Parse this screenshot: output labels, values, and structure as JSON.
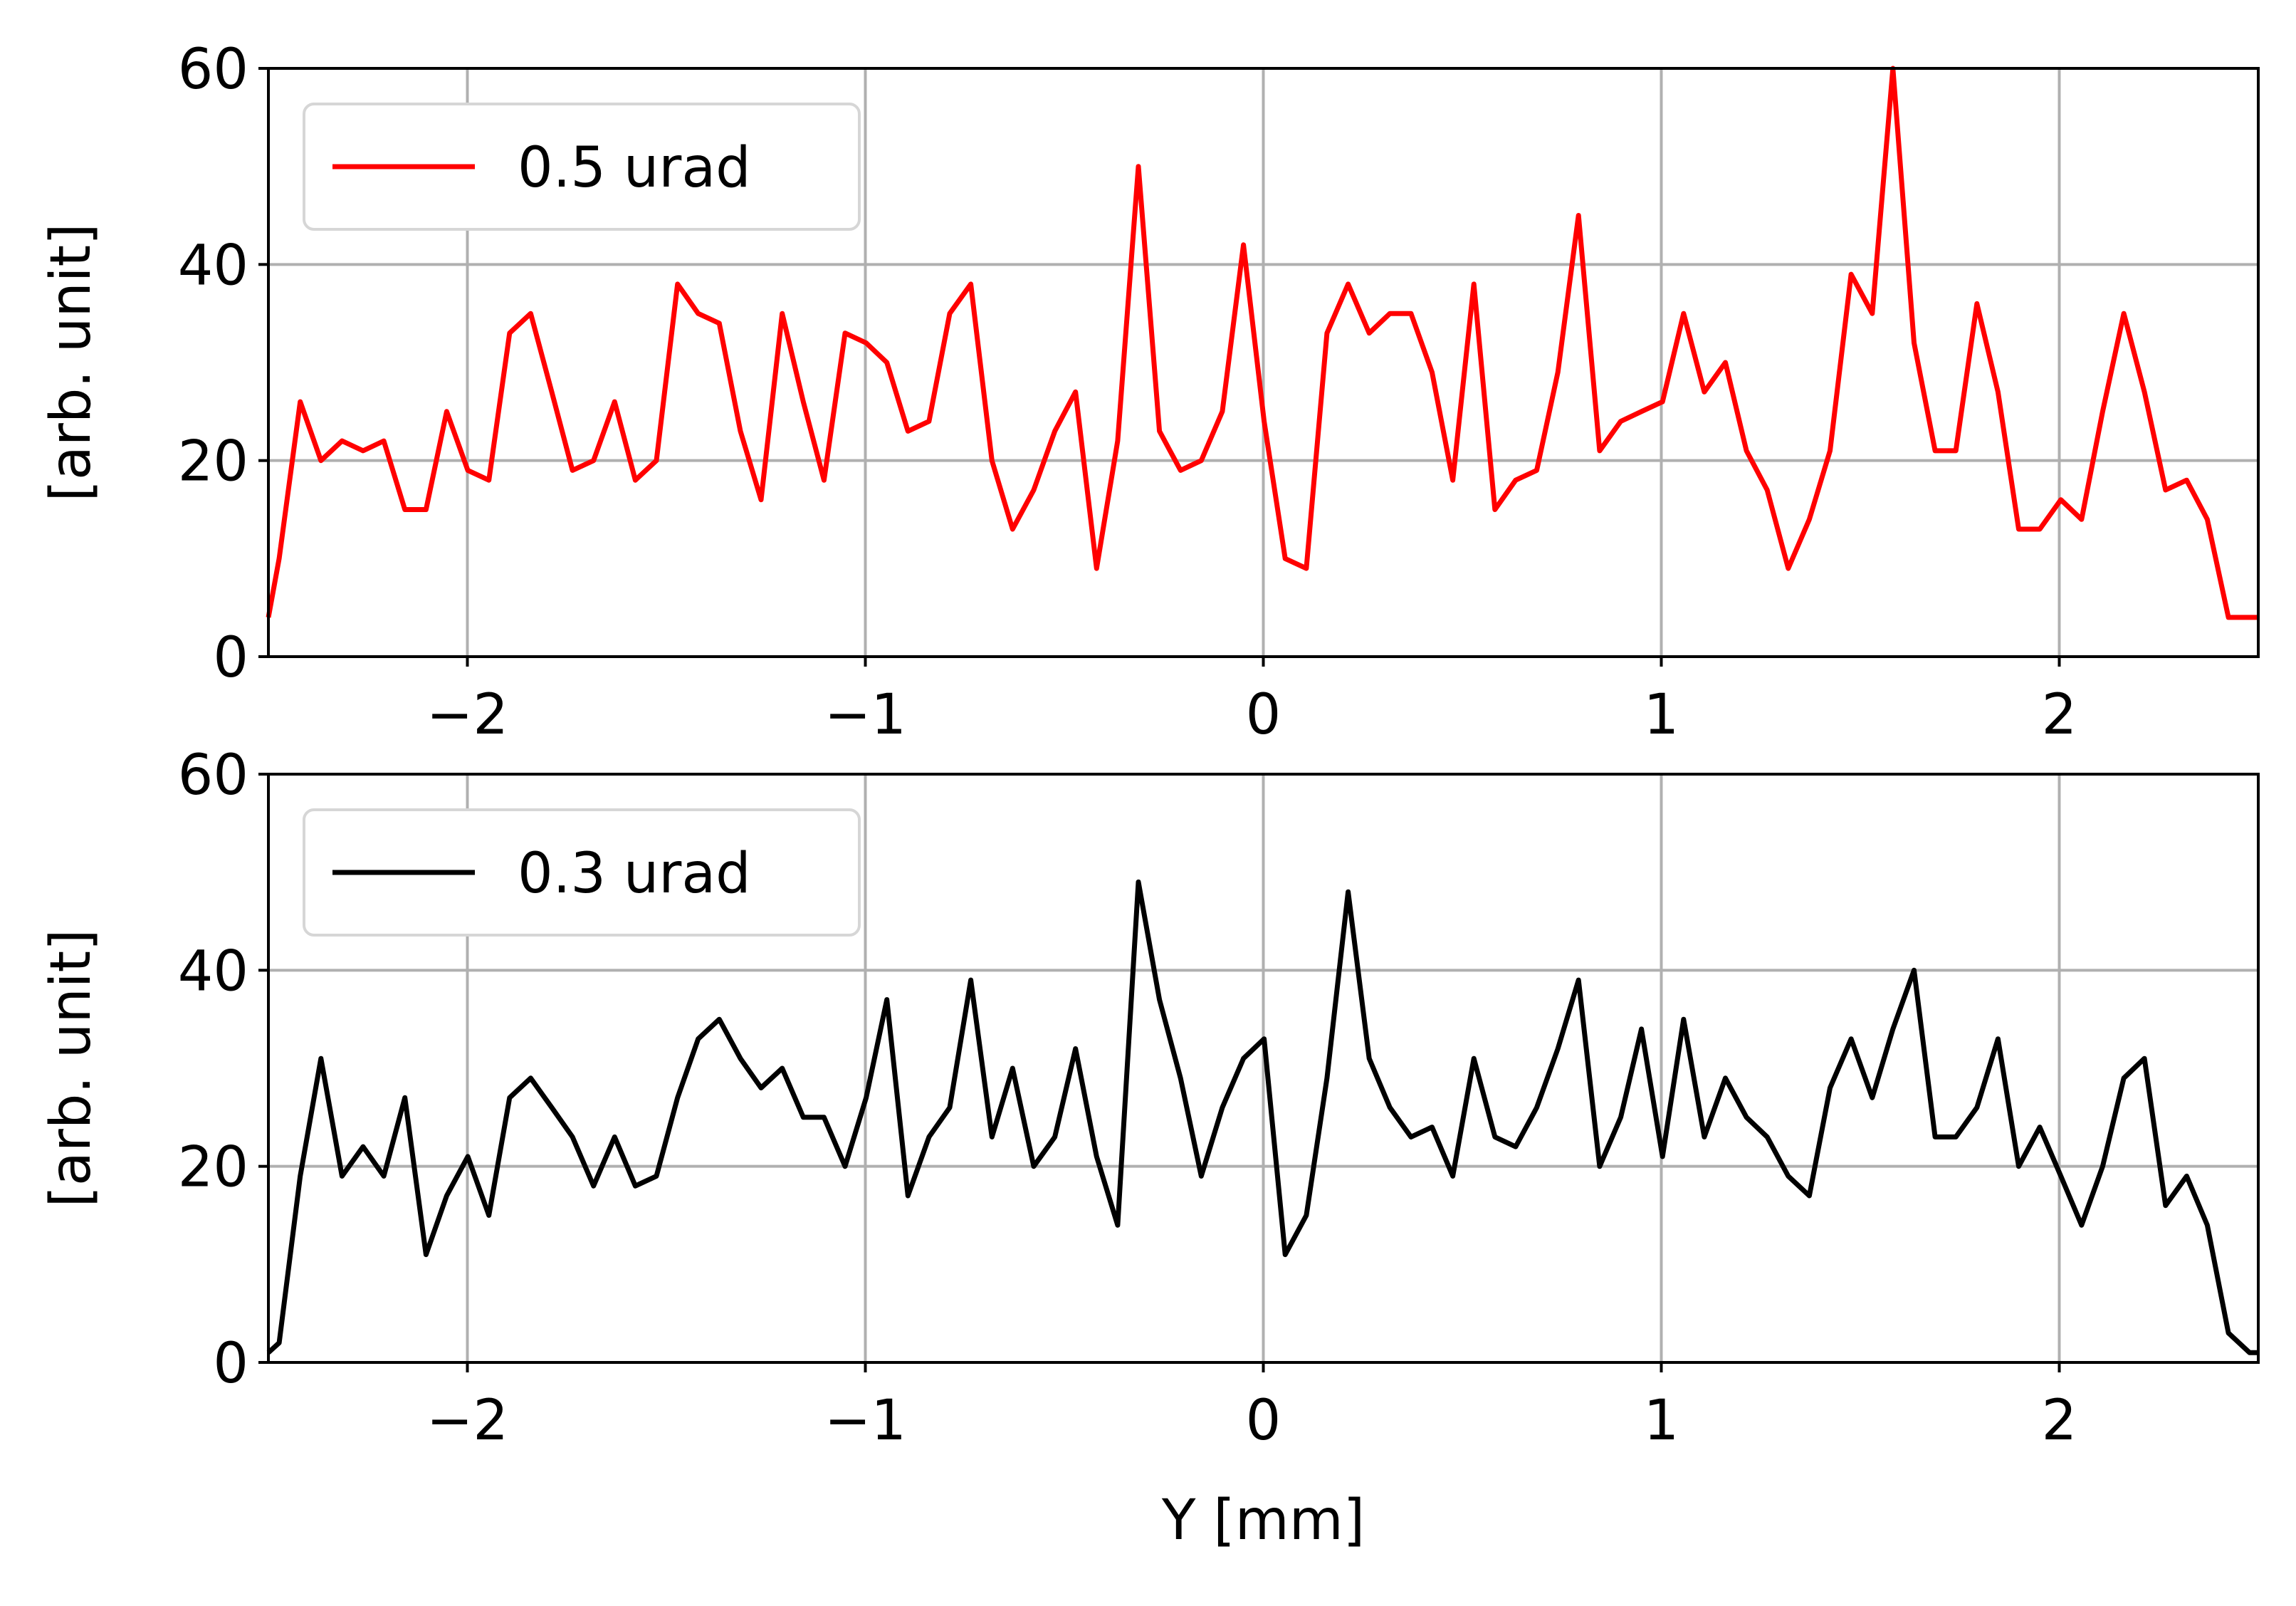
{
  "chart_data": [
    {
      "type": "line",
      "title": "",
      "xlabel": "",
      "ylabel": "[arb. unit]",
      "xlim": [
        -2.5,
        2.5
      ],
      "ylim": [
        0,
        60
      ],
      "xticks": [
        -2,
        -1,
        0,
        1,
        2
      ],
      "xtick_labels": [
        "−2",
        "−1",
        "0",
        "1",
        "2"
      ],
      "yticks": [
        0,
        20,
        40,
        60
      ],
      "ytick_labels": [
        "0",
        "20",
        "40",
        "60"
      ],
      "grid": true,
      "legend": {
        "position": "top-left"
      },
      "series": [
        {
          "name": "0.5 urad",
          "color": "#ff0000",
          "x": [
            -2.5,
            -2.473,
            -2.42,
            -2.368,
            -2.315,
            -2.262,
            -2.21,
            -2.157,
            -2.104,
            -2.052,
            -1.999,
            -1.946,
            -1.894,
            -1.841,
            -1.788,
            -1.736,
            -1.683,
            -1.63,
            -1.578,
            -1.525,
            -1.472,
            -1.42,
            -1.367,
            -1.314,
            -1.262,
            -1.209,
            -1.156,
            -1.104,
            -1.051,
            -0.998,
            -0.946,
            -0.893,
            -0.84,
            -0.788,
            -0.735,
            -0.682,
            -0.63,
            -0.577,
            -0.524,
            -0.472,
            -0.419,
            -0.366,
            -0.314,
            -0.261,
            -0.208,
            -0.156,
            -0.103,
            -0.05,
            0.002,
            0.055,
            0.108,
            0.16,
            0.213,
            0.266,
            0.318,
            0.371,
            0.424,
            0.476,
            0.529,
            0.582,
            0.634,
            0.687,
            0.74,
            0.792,
            0.845,
            0.898,
            0.95,
            1.003,
            1.056,
            1.108,
            1.161,
            1.214,
            1.266,
            1.319,
            1.372,
            1.424,
            1.477,
            1.53,
            1.582,
            1.635,
            1.688,
            1.74,
            1.793,
            1.846,
            1.898,
            1.951,
            2.004,
            2.056,
            2.109,
            2.162,
            2.214,
            2.267,
            2.32,
            2.372,
            2.425,
            2.478,
            2.5
          ],
          "y": [
            4,
            10,
            26,
            20,
            22,
            21,
            22,
            15,
            15,
            25,
            19,
            18,
            33,
            35,
            27,
            19,
            20,
            26,
            18,
            20,
            38,
            35,
            34,
            23,
            16,
            35,
            26,
            18,
            33,
            32,
            30,
            23,
            24,
            35,
            38,
            20,
            13,
            17,
            23,
            27,
            9,
            22,
            50,
            23,
            19,
            20,
            25,
            42,
            24,
            10,
            9,
            33,
            38,
            33,
            35,
            35,
            29,
            18,
            38,
            15,
            18,
            19,
            29,
            45,
            21,
            24,
            25,
            26,
            35,
            27,
            30,
            21,
            17,
            9,
            14,
            21,
            39,
            35,
            60,
            32,
            21,
            21,
            36,
            27,
            13,
            13,
            16,
            14,
            25,
            35,
            27,
            17,
            18,
            14,
            4,
            4,
            4
          ]
        }
      ]
    },
    {
      "type": "line",
      "title": "",
      "xlabel": "Y [mm]",
      "ylabel": "[arb. unit]",
      "xlim": [
        -2.5,
        2.5
      ],
      "ylim": [
        0,
        60
      ],
      "xticks": [
        -2,
        -1,
        0,
        1,
        2
      ],
      "xtick_labels": [
        "−2",
        "−1",
        "0",
        "1",
        "2"
      ],
      "yticks": [
        0,
        20,
        40,
        60
      ],
      "ytick_labels": [
        "0",
        "20",
        "40",
        "60"
      ],
      "grid": true,
      "legend": {
        "position": "top-left"
      },
      "series": [
        {
          "name": "0.3 urad",
          "color": "#000000",
          "x": [
            -2.5,
            -2.473,
            -2.42,
            -2.368,
            -2.315,
            -2.262,
            -2.21,
            -2.157,
            -2.104,
            -2.052,
            -1.999,
            -1.946,
            -1.894,
            -1.841,
            -1.788,
            -1.736,
            -1.683,
            -1.63,
            -1.578,
            -1.525,
            -1.472,
            -1.42,
            -1.367,
            -1.314,
            -1.262,
            -1.209,
            -1.156,
            -1.104,
            -1.051,
            -0.998,
            -0.946,
            -0.893,
            -0.84,
            -0.788,
            -0.735,
            -0.682,
            -0.63,
            -0.577,
            -0.524,
            -0.472,
            -0.419,
            -0.366,
            -0.314,
            -0.261,
            -0.208,
            -0.156,
            -0.103,
            -0.05,
            0.002,
            0.055,
            0.108,
            0.16,
            0.213,
            0.266,
            0.318,
            0.371,
            0.424,
            0.476,
            0.529,
            0.582,
            0.634,
            0.687,
            0.74,
            0.792,
            0.845,
            0.898,
            0.95,
            1.003,
            1.056,
            1.108,
            1.161,
            1.214,
            1.266,
            1.319,
            1.372,
            1.424,
            1.477,
            1.53,
            1.582,
            1.635,
            1.688,
            1.74,
            1.793,
            1.846,
            1.898,
            1.951,
            2.004,
            2.056,
            2.109,
            2.162,
            2.214,
            2.267,
            2.32,
            2.372,
            2.425,
            2.478,
            2.5
          ],
          "y": [
            1,
            2,
            19,
            31,
            19,
            22,
            19,
            27,
            11,
            17,
            21,
            15,
            27,
            29,
            26,
            23,
            18,
            23,
            18,
            19,
            27,
            33,
            35,
            31,
            28,
            30,
            25,
            25,
            20,
            27,
            37,
            17,
            23,
            26,
            39,
            23,
            30,
            20,
            23,
            32,
            21,
            14,
            49,
            37,
            29,
            19,
            26,
            31,
            33,
            11,
            15,
            29,
            48,
            31,
            26,
            23,
            24,
            19,
            31,
            23,
            22,
            26,
            32,
            39,
            20,
            25,
            34,
            21,
            35,
            23,
            29,
            25,
            23,
            19,
            17,
            28,
            33,
            27,
            34,
            40,
            23,
            23,
            26,
            33,
            20,
            24,
            19,
            14,
            20,
            29,
            31,
            16,
            19,
            14,
            3,
            1,
            1
          ]
        }
      ]
    }
  ]
}
